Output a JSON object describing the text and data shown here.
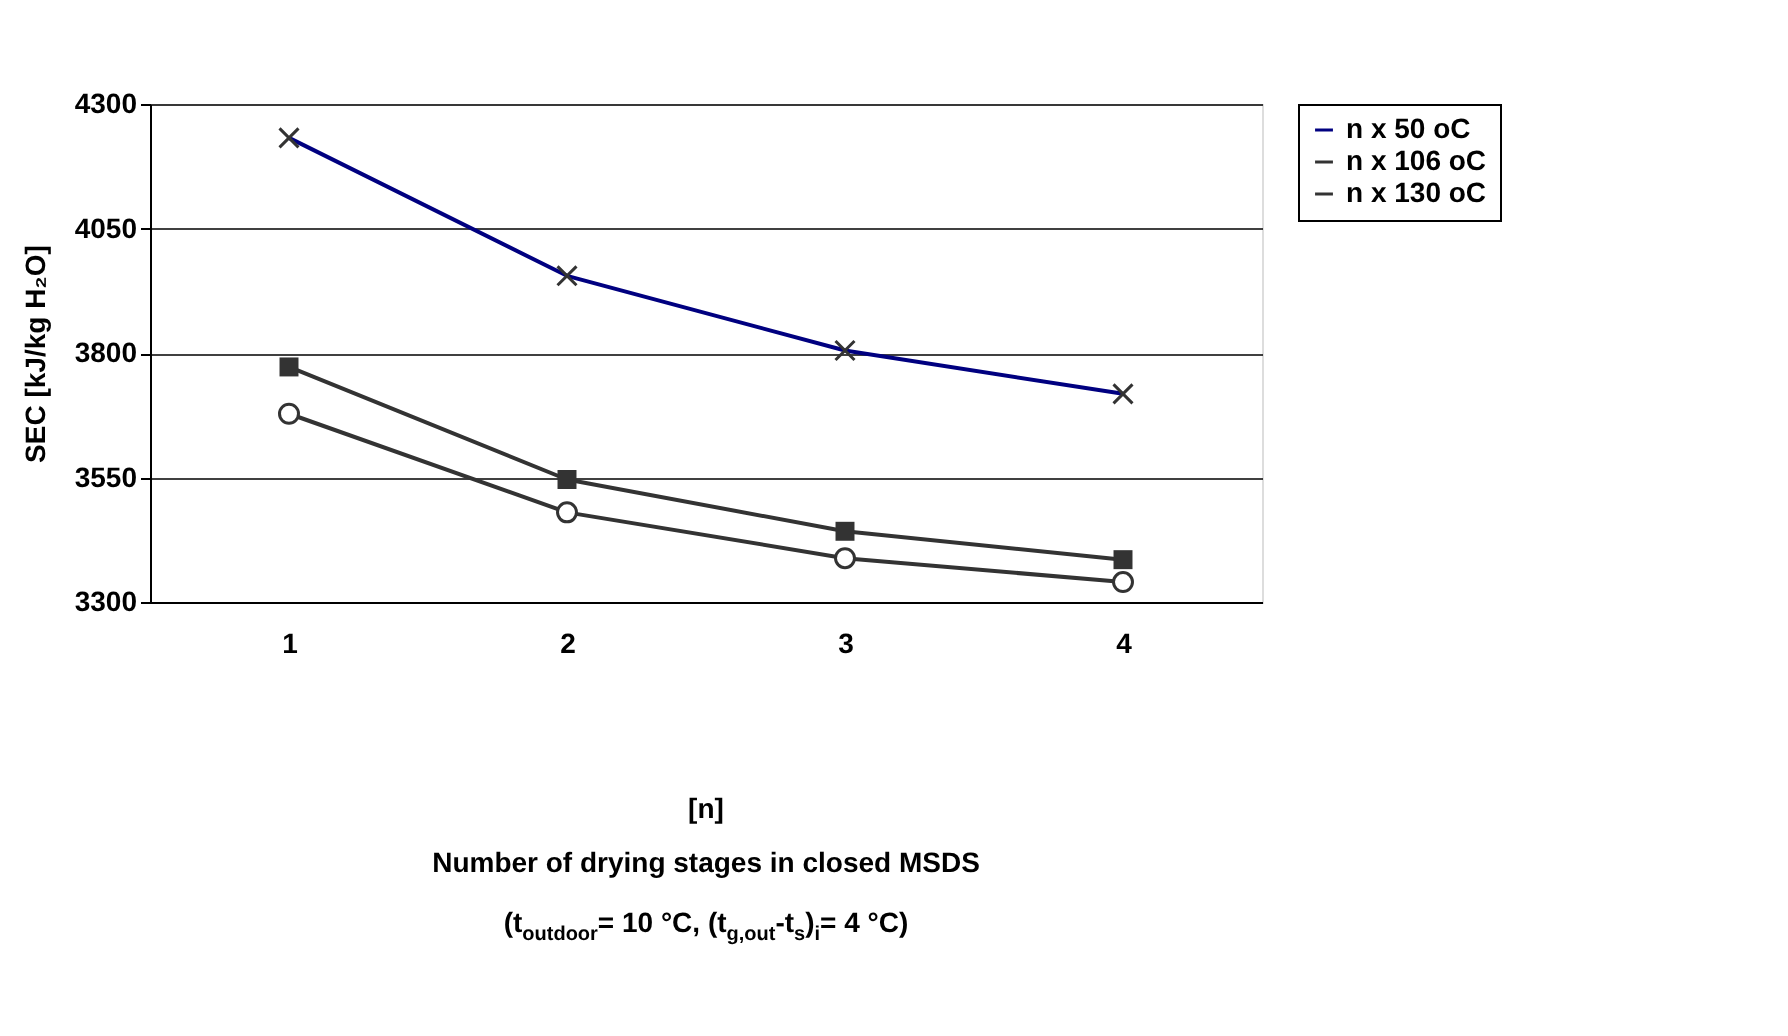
{
  "chart_data": {
    "type": "line",
    "ylabel": "SEC [kJ/kg H₂O]",
    "xlabel": "[n]\nNumber of drying stages in closed MSDS\n(t$_{outdoor}$= 10 °C, (t$_{g,out}$-t$_{s}$)$_{i}$= 4 °C)",
    "categories": [
      "1",
      "2",
      "3",
      "4"
    ],
    "series": [
      {
        "name": "n x 50 oC",
        "color": "#000080",
        "marker": "cross",
        "values": [
          4232,
          3955,
          3805,
          3718
        ]
      },
      {
        "name": "n x 106 oC",
        "color": "#333333",
        "marker": "square",
        "values": [
          3772,
          3546,
          3442,
          3385
        ]
      },
      {
        "name": "n x 130 oC",
        "color": "#333333",
        "marker": "circle",
        "values": [
          3678,
          3480,
          3388,
          3340
        ]
      }
    ],
    "ylim": [
      3300,
      4300
    ],
    "yticks": [
      3300,
      3550,
      3800,
      4050,
      4300
    ],
    "grid": "y",
    "legend": "right"
  }
}
